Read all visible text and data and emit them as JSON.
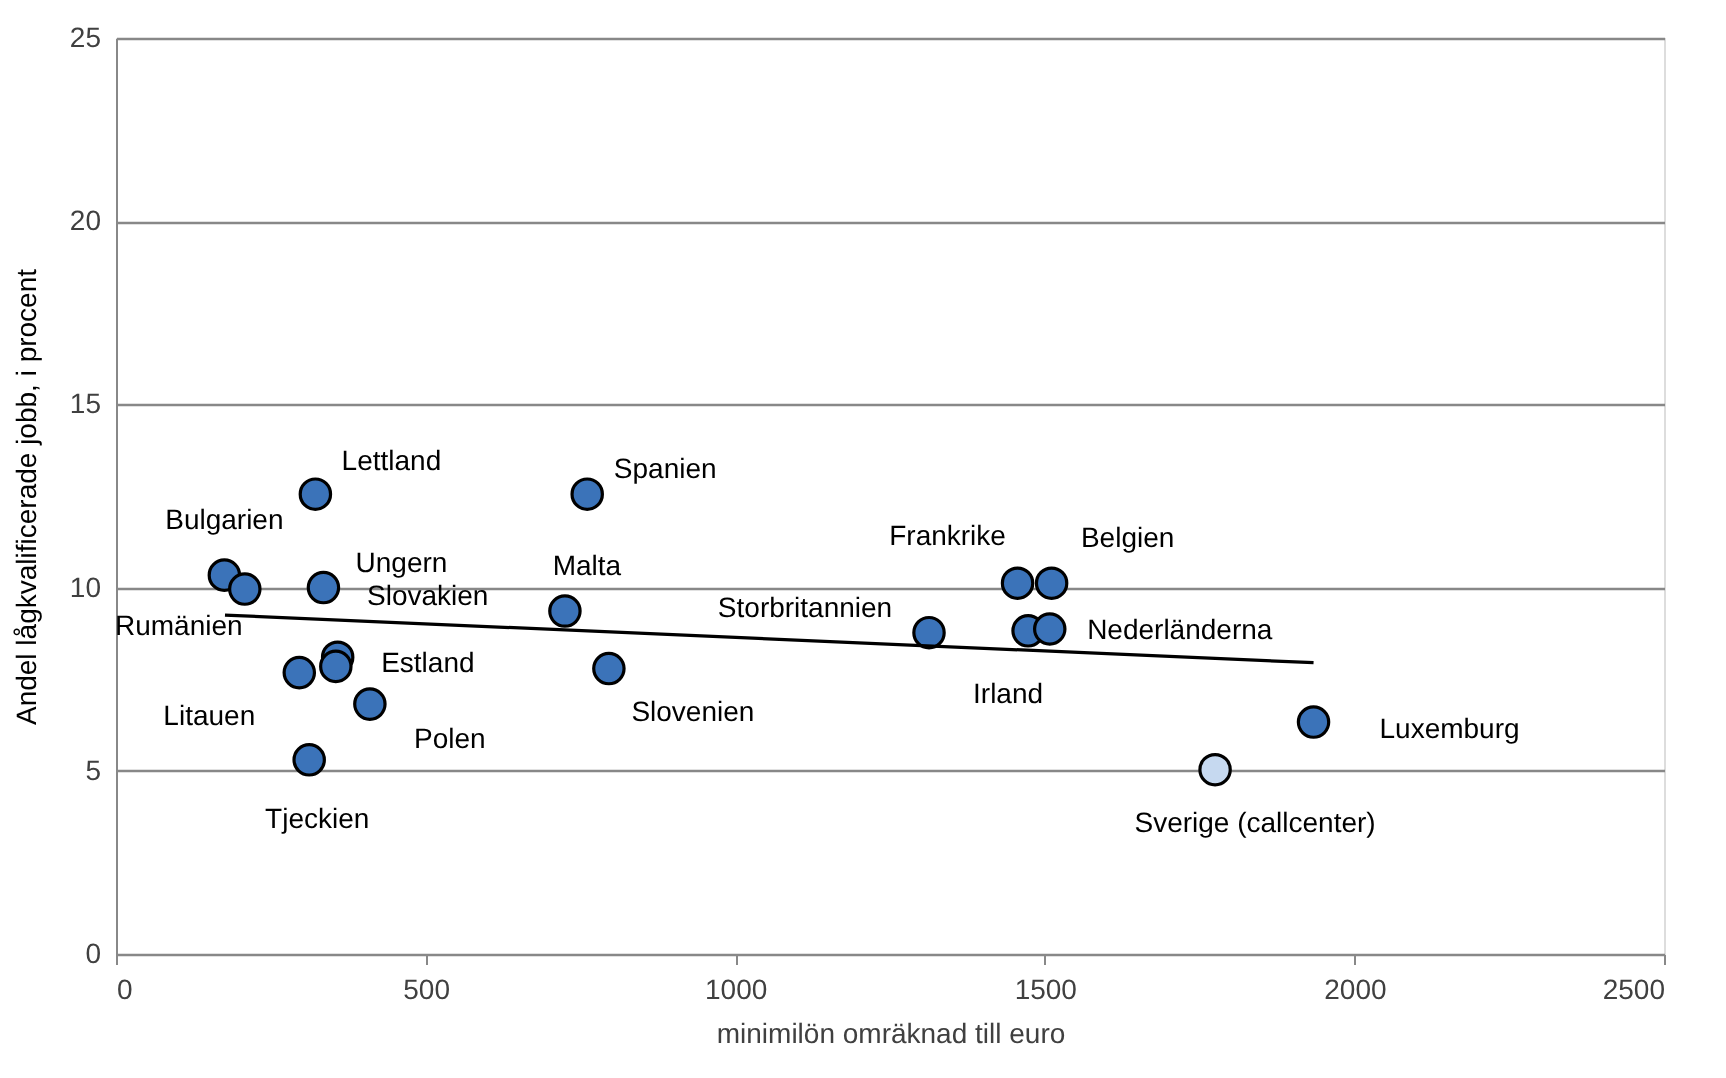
{
  "chart_data": {
    "type": "scatter",
    "xlabel": "minimilön omräknad till euro",
    "ylabel": "Andel lågkvalificerade jobb, i procent",
    "xlim": [
      0,
      2500
    ],
    "xticks": [
      0,
      500,
      1000,
      1500,
      2000,
      2500
    ],
    "ylim": [
      0,
      25
    ],
    "yticks": [
      0,
      5,
      10,
      15,
      20,
      25
    ],
    "grid": "y",
    "series": [
      {
        "color": "#3b73b9",
        "marker": "circle",
        "x": [
          322,
          761,
          175,
          208,
          335,
          358,
          355,
          296,
          410,
          312,
          725,
          796,
          1313,
          1456,
          1511,
          1473,
          1508,
          1934
        ],
        "values": [
          12.55,
          12.55,
          10.34,
          9.96,
          10.0,
          8.1,
          7.85,
          7.68,
          6.82,
          5.3,
          9.36,
          7.79,
          8.77,
          10.12,
          10.12,
          8.82,
          8.87,
          6.33
        ]
      },
      {
        "color": "#c6d9f0",
        "marker": "circle",
        "x": [
          1775
        ],
        "values": [
          5.03
        ]
      },
      {
        "type": "line",
        "color": "#000000",
        "x": [
          176,
          1934
        ],
        "values": [
          9.25,
          7.95
        ]
      }
    ],
    "annotations": [
      {
        "text": "Lettland",
        "x": 322,
        "y": 12.55
      },
      {
        "text": "Spanien",
        "x": 761,
        "y": 12.55
      },
      {
        "text": "Bulgarien",
        "x": 175,
        "y": 10.34
      },
      {
        "text": "Rumänien",
        "x": 208,
        "y": 9.96
      },
      {
        "text": "Ungern",
        "x": 335,
        "y": 10.0
      },
      {
        "text": "Slovakien",
        "x": 358,
        "y": 8.1
      },
      {
        "text": "Estland",
        "x": 355,
        "y": 7.85
      },
      {
        "text": "Litauen",
        "x": 296,
        "y": 7.68
      },
      {
        "text": "Polen",
        "x": 410,
        "y": 6.82
      },
      {
        "text": "Tjeckien",
        "x": 312,
        "y": 5.3
      },
      {
        "text": "Malta",
        "x": 725,
        "y": 9.36
      },
      {
        "text": "Slovenien",
        "x": 796,
        "y": 7.79
      },
      {
        "text": "Storbritannien",
        "x": 1313,
        "y": 8.77
      },
      {
        "text": "Frankrike",
        "x": 1456,
        "y": 10.12
      },
      {
        "text": "Belgien",
        "x": 1511,
        "y": 10.12
      },
      {
        "text": "Irland",
        "x": 1473,
        "y": 8.82
      },
      {
        "text": "Nederländerna",
        "x": 1508,
        "y": 8.87
      },
      {
        "text": "Luxemburg",
        "x": 1934,
        "y": 6.33
      },
      {
        "text": "Sverige (callcenter)",
        "x": 1775,
        "y": 5.03
      }
    ]
  }
}
